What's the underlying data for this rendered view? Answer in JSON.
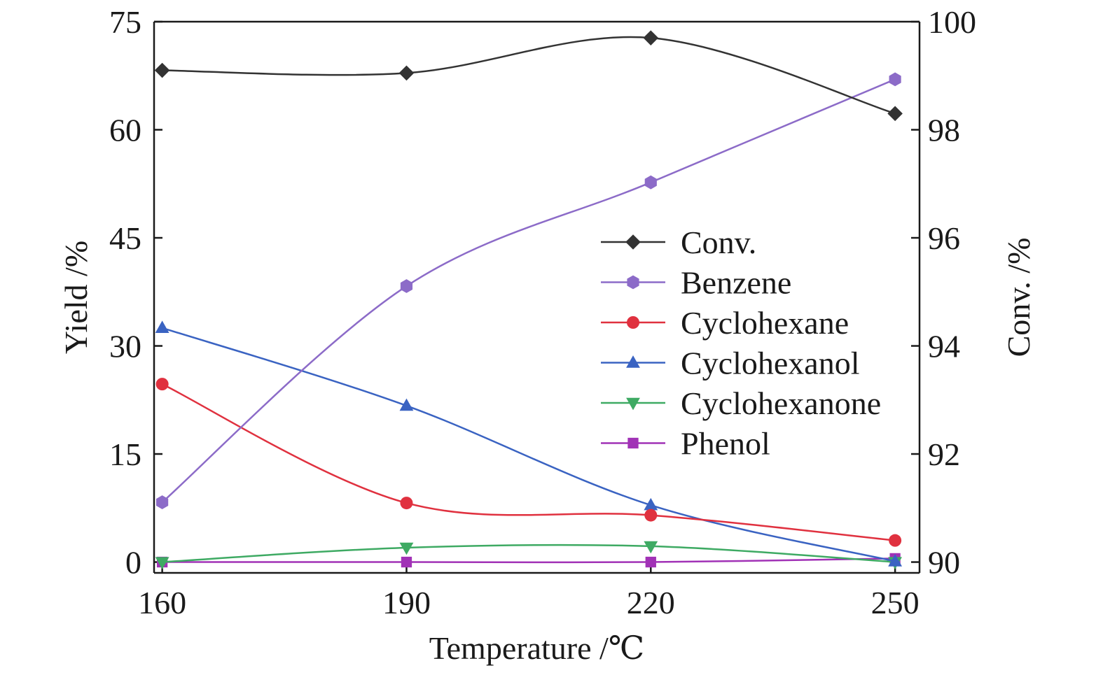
{
  "chart_data": {
    "type": "line",
    "x": [
      160,
      190,
      220,
      250
    ],
    "x_ticks": [
      "160",
      "190",
      "220",
      "250"
    ],
    "xlabel": "Temperature /℃",
    "xlim": [
      159,
      253
    ],
    "y_left": {
      "label": "Yield /%",
      "lim": [
        -1.5,
        75
      ],
      "ticks": [
        "0",
        "15",
        "30",
        "45",
        "60",
        "75"
      ],
      "tick_values": [
        0,
        15,
        30,
        45,
        60,
        75
      ]
    },
    "y_right": {
      "label": "Conv. /%",
      "lim": [
        89.8,
        100
      ],
      "ticks": [
        "90",
        "92",
        "94",
        "96",
        "98",
        "100"
      ],
      "tick_values": [
        90,
        92,
        94,
        96,
        98,
        100
      ]
    },
    "legend_position": "center-right",
    "series": [
      {
        "name": "Conv.",
        "axis": "right",
        "color": "#333333",
        "marker": "diamond",
        "values": [
          99.1,
          99.05,
          99.7,
          98.3
        ]
      },
      {
        "name": "Benzene",
        "axis": "left",
        "color": "#8c6bc8",
        "marker": "hexagon",
        "values": [
          8.3,
          38.3,
          52.7,
          67.0
        ]
      },
      {
        "name": "Cyclohexane",
        "axis": "left",
        "color": "#e0313f",
        "marker": "circle",
        "values": [
          24.7,
          8.2,
          6.5,
          3.0
        ]
      },
      {
        "name": "Cyclohexanol",
        "axis": "left",
        "color": "#3a63c2",
        "marker": "triangle-up",
        "values": [
          32.5,
          21.7,
          7.9,
          0.1
        ]
      },
      {
        "name": "Cyclohexanone",
        "axis": "left",
        "color": "#3eaa63",
        "marker": "triangle-down",
        "values": [
          0.0,
          2.0,
          2.2,
          0.0
        ]
      },
      {
        "name": "Phenol",
        "axis": "left",
        "color": "#a132b6",
        "marker": "square",
        "values": [
          0.0,
          0.0,
          0.0,
          0.5
        ]
      }
    ]
  }
}
